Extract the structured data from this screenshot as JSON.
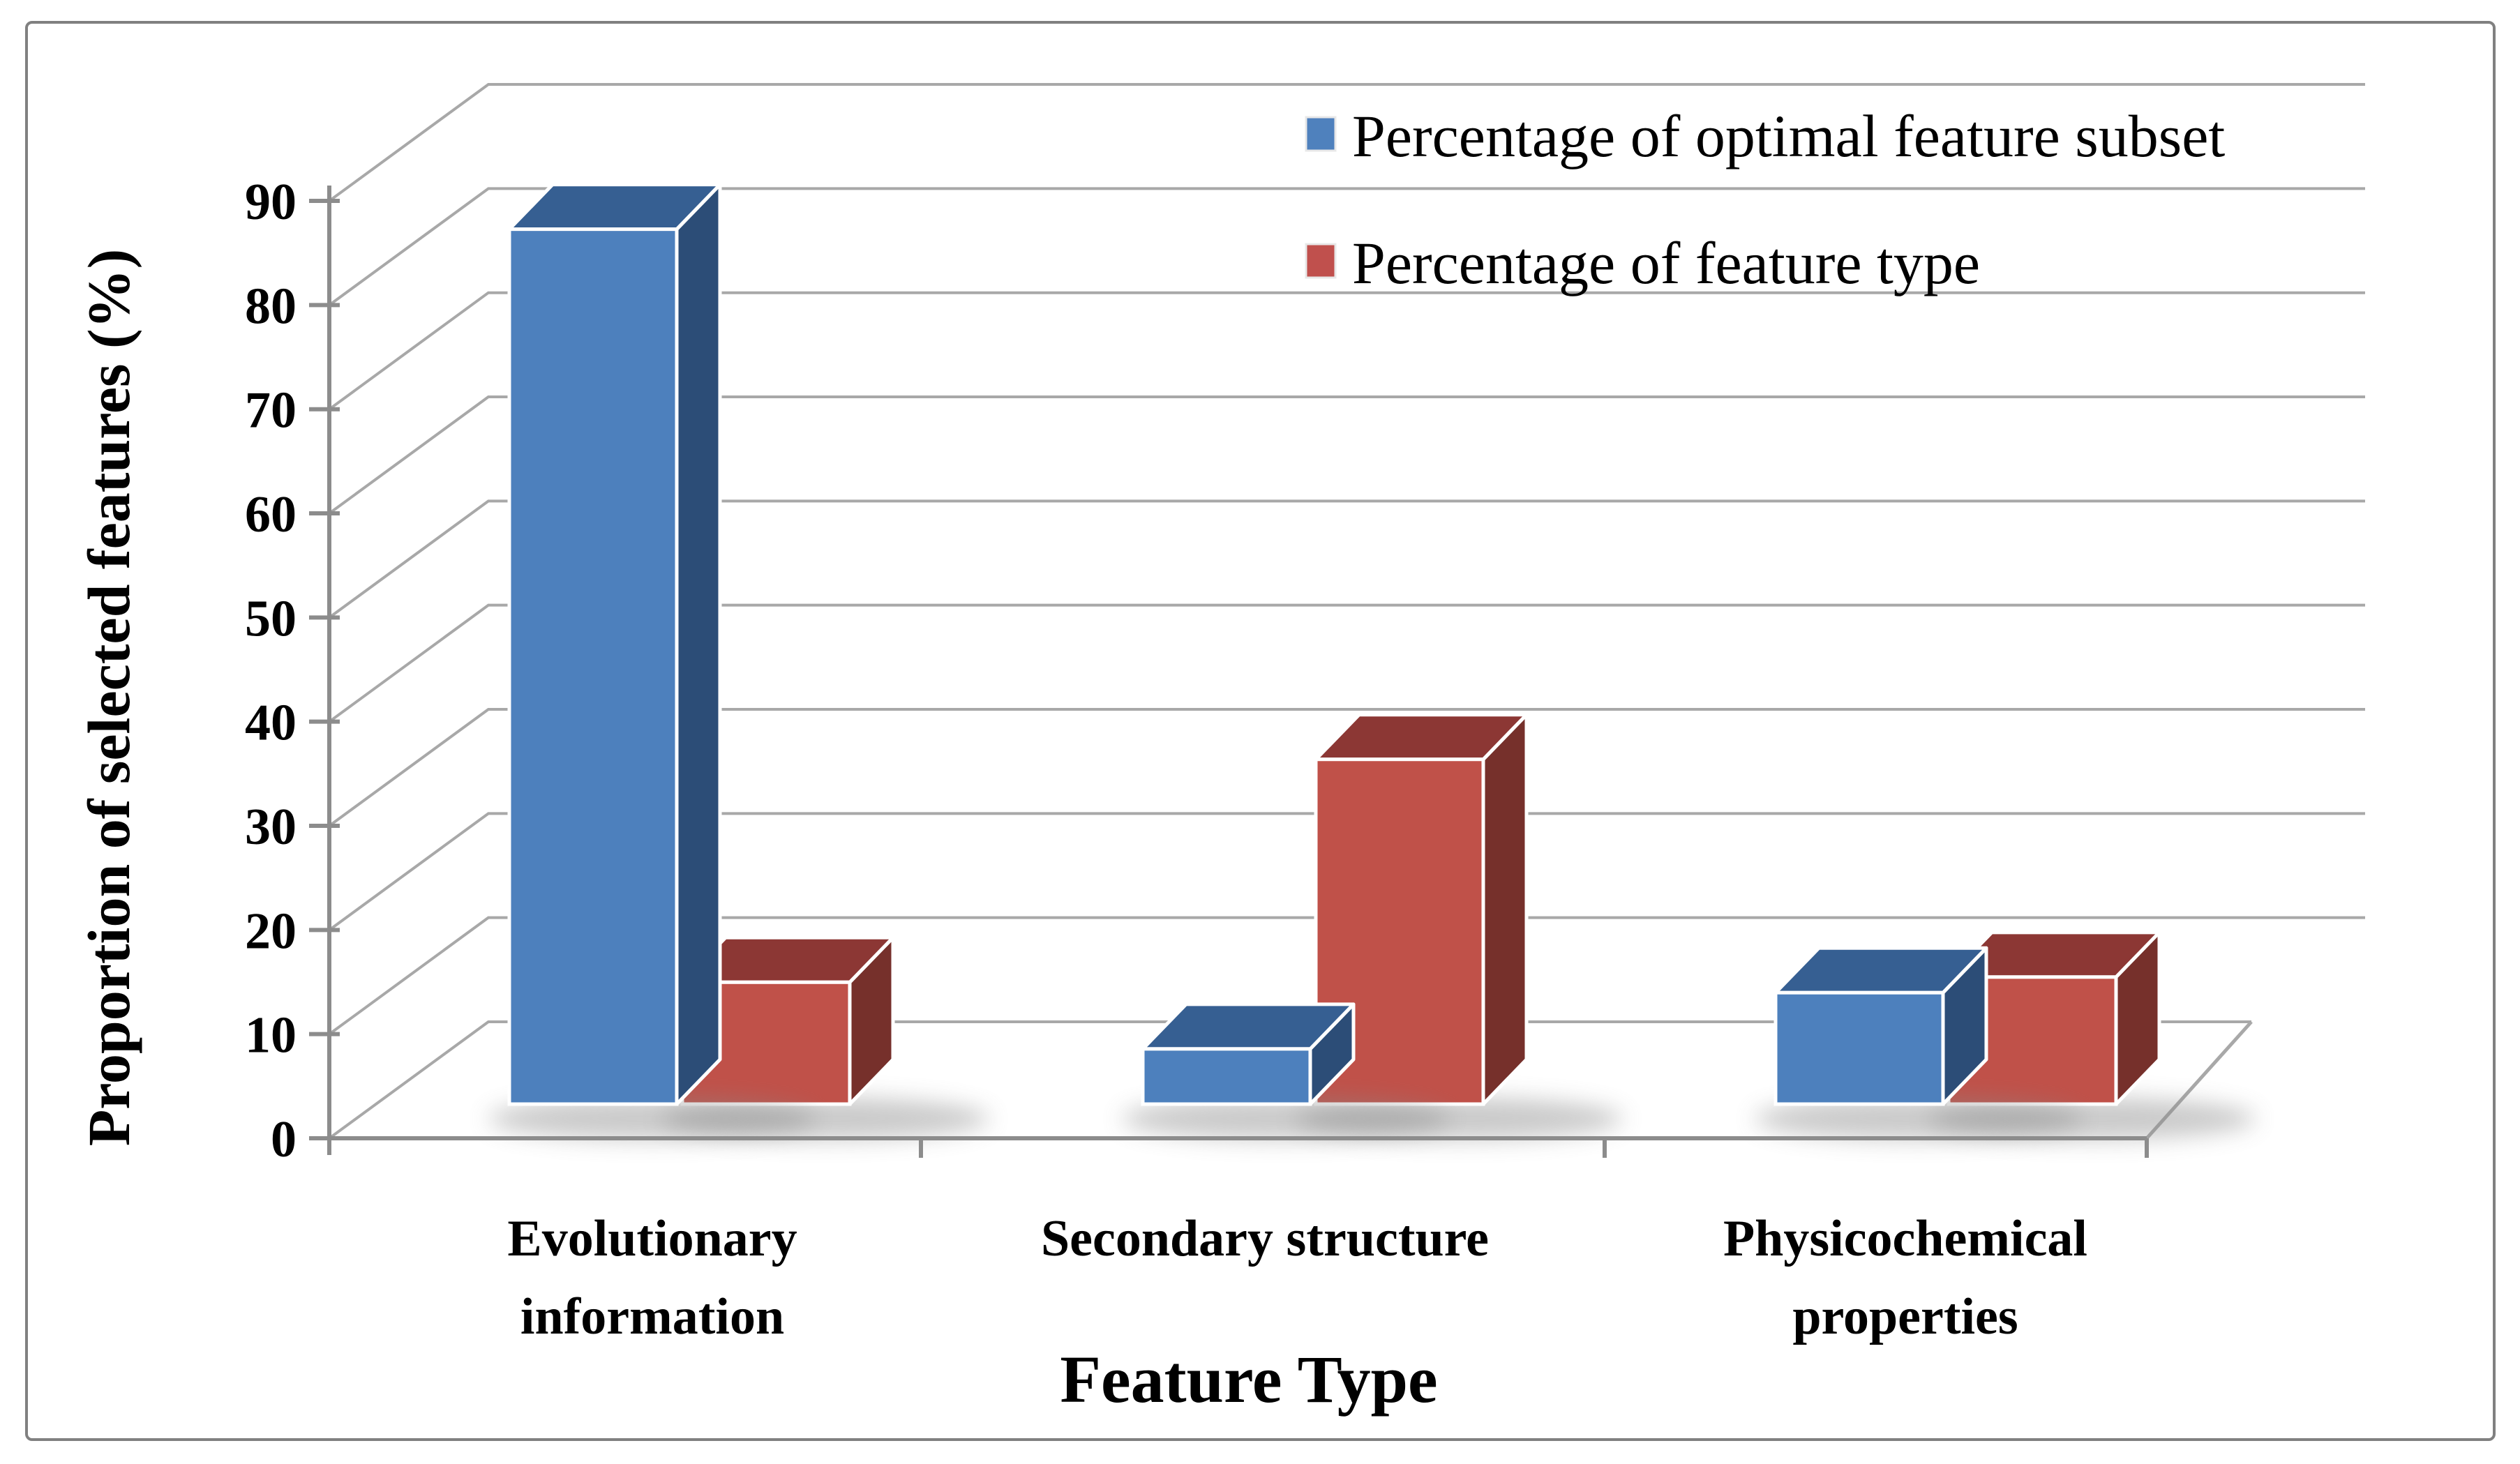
{
  "legend": [
    {
      "label": "Percentage of optimal feature subset",
      "color": "#4F81BD"
    },
    {
      "label": "Percentage of feature type",
      "color": "#C0504D"
    }
  ],
  "chart_data": {
    "type": "bar",
    "style": "3d-clustered-column",
    "categories": [
      "Evolutionary information",
      "Secondary structure",
      "Physicochemical properties"
    ],
    "category_label_lines": [
      [
        "Evolutionary",
        "information"
      ],
      [
        "Secondary structure"
      ],
      [
        "Physicochemical",
        "properties"
      ]
    ],
    "series": [
      {
        "name": "Percentage of optimal feature subset",
        "color": "#4F81BD",
        "values": [
          84,
          5.3,
          10.7
        ]
      },
      {
        "name": "Percentage of feature type",
        "color": "#C0504D",
        "values": [
          11.7,
          33.1,
          12.2
        ]
      }
    ],
    "xlabel": "Feature Type",
    "ylabel": "Proportion of selected features (%)",
    "yticks": [
      0,
      10,
      20,
      30,
      40,
      50,
      60,
      70,
      80,
      90
    ],
    "ylim": [
      0,
      90
    ],
    "grid": true,
    "legend_position": "top-right"
  },
  "colors": {
    "blue_front": "#4D80BD",
    "blue_top": "#365F92",
    "blue_side": "#2C4D77",
    "red_front": "#C05149",
    "red_top": "#8C3734",
    "red_side": "#76302B",
    "gridline": "#A8A8A8",
    "axis": "#8C8C8C",
    "border": "#808080",
    "text": "#000000"
  }
}
